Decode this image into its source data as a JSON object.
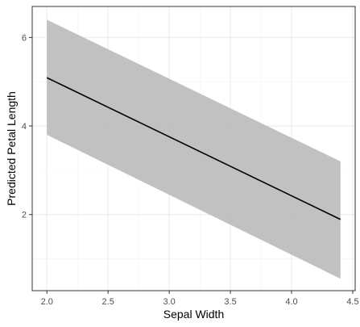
{
  "chart_data": {
    "type": "line",
    "title": "",
    "xlabel": "Sepal Width",
    "ylabel": "Predicted Petal Length",
    "xlim": [
      2.0,
      4.4
    ],
    "ylim": [
      0.55,
      6.4
    ],
    "x_ticks": [
      2.0,
      2.5,
      3.0,
      3.5,
      4.0,
      4.5
    ],
    "x_tick_labels": [
      "2.0",
      "2.5",
      "3.0",
      "3.5",
      "4.0",
      "4.5"
    ],
    "y_ticks": [
      2,
      4,
      6
    ],
    "y_tick_labels": [
      "2",
      "4",
      "6"
    ],
    "grid": true,
    "series": [
      {
        "x": [
          2.0,
          4.4
        ],
        "y": [
          5.09,
          1.89
        ],
        "lower": [
          3.8,
          0.55
        ],
        "upper": [
          6.4,
          3.2
        ]
      }
    ],
    "colors": {
      "line": "#000000",
      "band": "#bebebe",
      "grid_major": "#ebebeb",
      "grid_minor": "#f4f4f4",
      "panel_border": "#333333"
    }
  }
}
